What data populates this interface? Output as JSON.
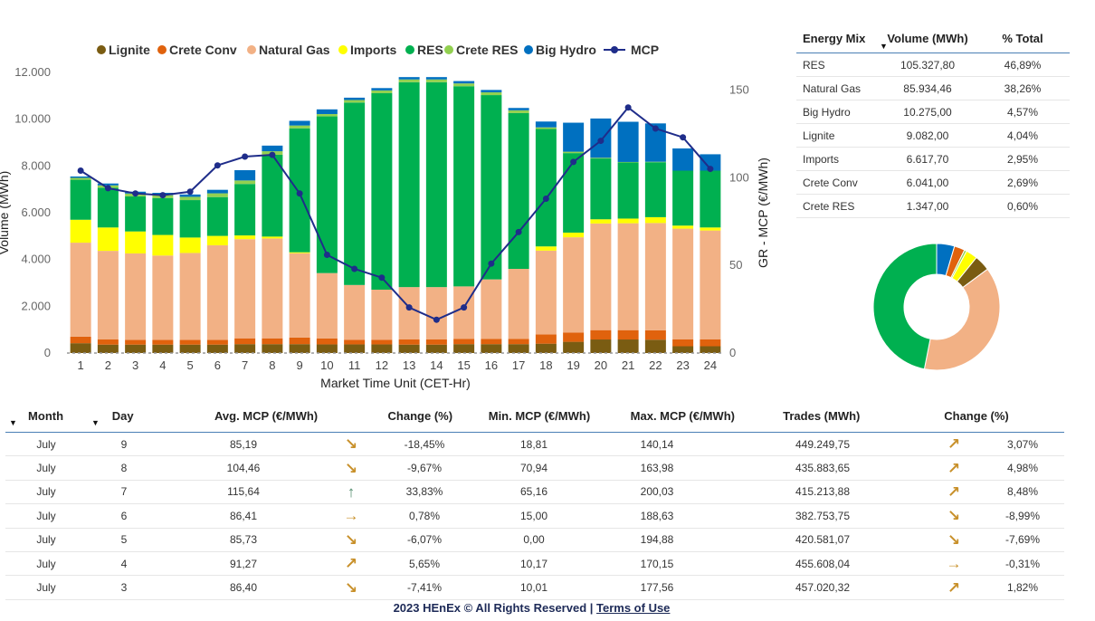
{
  "chart_data": {
    "type": "bar",
    "stacked": true,
    "legend_position": "top",
    "xlabel": "Market Time Unit (CET-Hr)",
    "ylabel": "Volume (MWh)",
    "y2label": "GR - MCP (€/MWh)",
    "ylim": [
      0,
      12000
    ],
    "y2lim": [
      0,
      160
    ],
    "yticks": [
      "0",
      "2.000",
      "4.000",
      "6.000",
      "8.000",
      "10.000",
      "12.000"
    ],
    "y2ticks": [
      "0",
      "50",
      "100",
      "150"
    ],
    "categories": [
      "1",
      "2",
      "3",
      "4",
      "5",
      "6",
      "7",
      "8",
      "9",
      "10",
      "11",
      "12",
      "13",
      "14",
      "15",
      "16",
      "17",
      "18",
      "19",
      "20",
      "21",
      "22",
      "23",
      "24"
    ],
    "series": [
      {
        "name": "Lignite",
        "color": "#7a5c12",
        "values": [
          420,
          360,
          360,
          360,
          360,
          360,
          380,
          380,
          380,
          370,
          370,
          370,
          360,
          360,
          380,
          380,
          380,
          400,
          480,
          580,
          580,
          570,
          290,
          290
        ]
      },
      {
        "name": "Crete Conv",
        "color": "#e0620d",
        "values": [
          280,
          220,
          200,
          200,
          200,
          200,
          250,
          250,
          280,
          250,
          200,
          200,
          220,
          220,
          220,
          220,
          220,
          400,
          400,
          400,
          400,
          400,
          300,
          300
        ]
      },
      {
        "name": "Natural Gas",
        "color": "#f2b185",
        "values": [
          4020,
          3790,
          3700,
          3610,
          3720,
          4050,
          4240,
          4270,
          3610,
          2800,
          2340,
          2140,
          2240,
          2240,
          2250,
          2550,
          3000,
          3580,
          4070,
          4560,
          4570,
          4590,
          4730,
          4650
        ]
      },
      {
        "name": "Imports",
        "color": "#ffff00",
        "values": [
          980,
          1000,
          940,
          880,
          660,
          400,
          160,
          80,
          40,
          0,
          0,
          0,
          0,
          0,
          0,
          0,
          0,
          180,
          200,
          180,
          200,
          250,
          130,
          130
        ]
      },
      {
        "name": "RES",
        "color": "#00b050",
        "values": [
          1710,
          1700,
          1500,
          1580,
          1600,
          1660,
          2200,
          3500,
          5300,
          6700,
          7800,
          8400,
          8760,
          8760,
          8560,
          7880,
          6660,
          5020,
          3400,
          2600,
          2400,
          2350,
          2350,
          2430
        ]
      },
      {
        "name": "Crete RES",
        "color": "#92d050",
        "values": [
          80,
          100,
          120,
          120,
          140,
          160,
          150,
          150,
          120,
          100,
          110,
          120,
          120,
          120,
          120,
          120,
          120,
          70,
          60,
          30,
          20,
          20,
          0,
          0
        ]
      },
      {
        "name": "Big Hydro",
        "color": "#0070c0",
        "values": [
          60,
          80,
          80,
          100,
          100,
          150,
          440,
          240,
          200,
          200,
          100,
          100,
          100,
          100,
          100,
          100,
          100,
          250,
          1240,
          1680,
          1720,
          1640,
          950,
          700
        ]
      }
    ],
    "line_series": {
      "name": "MCP",
      "color": "#1f2d8a",
      "axis": "right",
      "values": [
        104,
        94,
        91,
        90,
        92,
        107,
        112,
        113,
        91,
        56,
        48,
        43,
        26,
        19,
        26,
        51,
        69,
        88,
        109,
        121,
        140,
        128,
        123,
        105
      ]
    }
  },
  "energy_mix": {
    "headers": {
      "source": "Energy Mix",
      "volume": "Volume (MWh)",
      "percent": "% Total"
    },
    "sort_icon": "sort-desc-arrow",
    "rows": [
      {
        "source": "RES",
        "volume": "105.327,80",
        "percent": "46,89%"
      },
      {
        "source": "Natural Gas",
        "volume": "85.934,46",
        "percent": "38,26%"
      },
      {
        "source": "Big Hydro",
        "volume": "10.275,00",
        "percent": "4,57%"
      },
      {
        "source": "Lignite",
        "volume": "9.082,00",
        "percent": "4,04%"
      },
      {
        "source": "Imports",
        "volume": "6.617,70",
        "percent": "2,95%"
      },
      {
        "source": "Crete Conv",
        "volume": "6.041,00",
        "percent": "2,69%"
      },
      {
        "source": "Crete RES",
        "volume": "1.347,00",
        "percent": "0,60%"
      }
    ]
  },
  "donut": {
    "type": "pie",
    "order": [
      "Big Hydro",
      "Crete Conv",
      "Crete RES",
      "Imports",
      "Lignite",
      "Natural Gas",
      "RES"
    ],
    "values": [
      4.57,
      2.69,
      0.6,
      2.95,
      4.04,
      38.26,
      46.89
    ],
    "colors": [
      "#0070c0",
      "#e0620d",
      "#92d050",
      "#ffff00",
      "#7a5c12",
      "#f2b185",
      "#00b050"
    ]
  },
  "daily": {
    "headers": {
      "month": "Month",
      "day": "Day",
      "avg": "Avg. MCP (€/MWh)",
      "change": "Change (%)",
      "min": "Min. MCP (€/MWh)",
      "max": "Max. MCP (€/MWh)",
      "trades": "Trades (MWh)",
      "change2": "Change (%)"
    },
    "rows": [
      {
        "month": "July",
        "day": "9",
        "avg": "85,19",
        "arrow": "↘",
        "arrow_color": "#c8902a",
        "change": "-18,45%",
        "min": "18,81",
        "max": "140,14",
        "trades": "449.249,75",
        "arrow2": "↗",
        "arrow2_color": "#c8902a",
        "change2": "3,07%"
      },
      {
        "month": "July",
        "day": "8",
        "avg": "104,46",
        "arrow": "↘",
        "arrow_color": "#c8902a",
        "change": "-9,67%",
        "min": "70,94",
        "max": "163,98",
        "trades": "435.883,65",
        "arrow2": "↗",
        "arrow2_color": "#c8902a",
        "change2": "4,98%"
      },
      {
        "month": "July",
        "day": "7",
        "avg": "115,64",
        "arrow": "↑",
        "arrow_color": "#4f8a6a",
        "change": "33,83%",
        "min": "65,16",
        "max": "200,03",
        "trades": "415.213,88",
        "arrow2": "↗",
        "arrow2_color": "#c8902a",
        "change2": "8,48%"
      },
      {
        "month": "July",
        "day": "6",
        "avg": "86,41",
        "arrow": "→",
        "arrow_color": "#c8902a",
        "change": "0,78%",
        "min": "15,00",
        "max": "188,63",
        "trades": "382.753,75",
        "arrow2": "↘",
        "arrow2_color": "#c8902a",
        "change2": "-8,99%"
      },
      {
        "month": "July",
        "day": "5",
        "avg": "85,73",
        "arrow": "↘",
        "arrow_color": "#c8902a",
        "change": "-6,07%",
        "min": "0,00",
        "max": "194,88",
        "trades": "420.581,07",
        "arrow2": "↘",
        "arrow2_color": "#c8902a",
        "change2": "-7,69%"
      },
      {
        "month": "July",
        "day": "4",
        "avg": "91,27",
        "arrow": "↗",
        "arrow_color": "#c8902a",
        "change": "5,65%",
        "min": "10,17",
        "max": "170,15",
        "trades": "455.608,04",
        "arrow2": "→",
        "arrow2_color": "#c8902a",
        "change2": "-0,31%"
      },
      {
        "month": "July",
        "day": "3",
        "avg": "86,40",
        "arrow": "↘",
        "arrow_color": "#c8902a",
        "change": "-7,41%",
        "min": "10,01",
        "max": "177,56",
        "trades": "457.020,32",
        "arrow2": "↗",
        "arrow2_color": "#c8902a",
        "change2": "1,82%"
      }
    ]
  },
  "footer": {
    "text": "2023 HEnEx © All Rights Reserved | ",
    "link": "Terms of Use"
  }
}
